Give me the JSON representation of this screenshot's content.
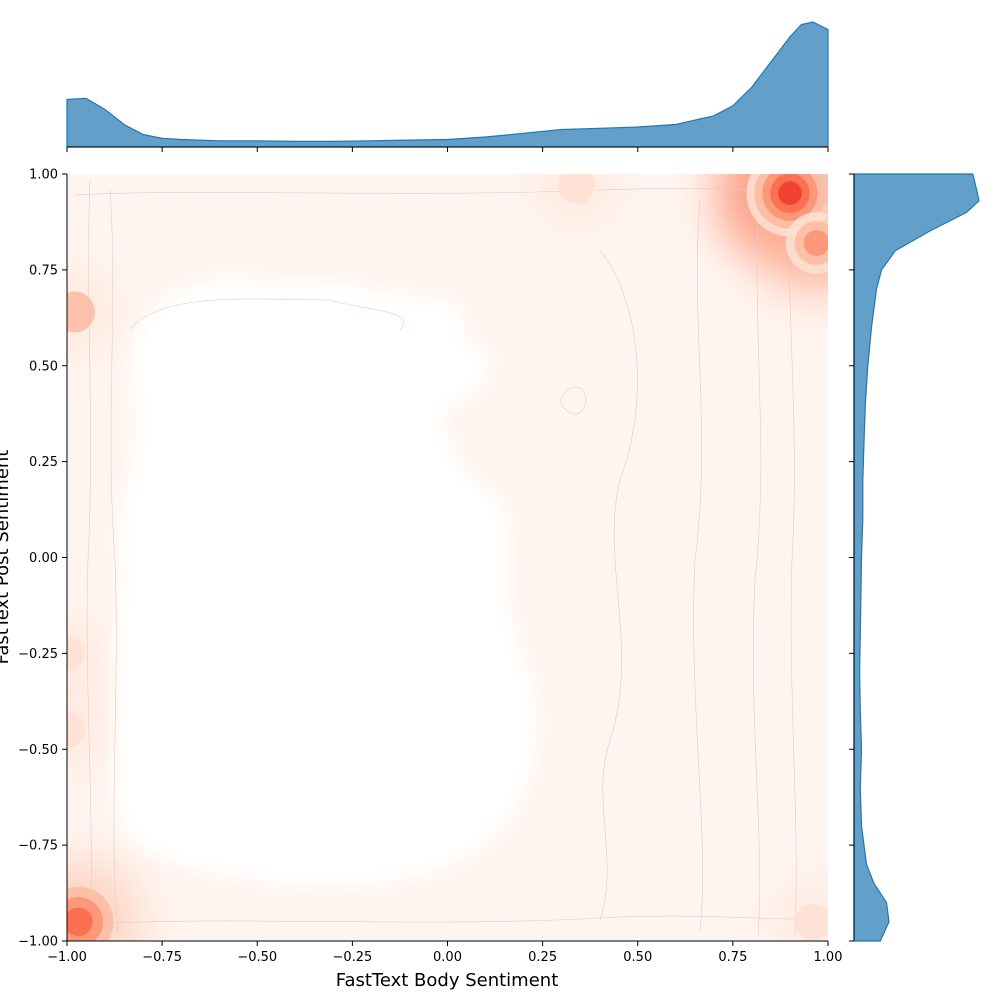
{
  "chart_data": {
    "type": "heatmap",
    "subtype": "jointplot-kde",
    "xlabel": "FastText Body Sentiment",
    "ylabel": "FastText Post Sentiment",
    "xlim": [
      -1.0,
      1.0
    ],
    "ylim": [
      -1.0,
      1.0
    ],
    "x_ticks": [
      "-1.00",
      "-0.75",
      "-0.50",
      "-0.25",
      "0.00",
      "0.25",
      "0.50",
      "0.75",
      "1.00"
    ],
    "y_ticks": [
      "-1.00",
      "-0.75",
      "-0.50",
      "-0.25",
      "0.00",
      "0.25",
      "0.50",
      "0.75",
      "1.00"
    ],
    "grid": false,
    "colormap": "Reds",
    "marginal_color": "#1f77b4",
    "density_peaks": [
      {
        "x": 0.96,
        "y": 0.96,
        "level": 1.0
      },
      {
        "x": 0.9,
        "y": 0.95,
        "level": 0.75
      },
      {
        "x": 0.97,
        "y": 0.82,
        "level": 0.45
      },
      {
        "x": -0.97,
        "y": -0.95,
        "level": 0.55
      },
      {
        "x": -0.98,
        "y": 0.64,
        "level": 0.2
      },
      {
        "x": 0.34,
        "y": 0.97,
        "level": 0.15
      },
      {
        "x": -1.0,
        "y": -0.45,
        "level": 0.15
      },
      {
        "x": -1.0,
        "y": -0.25,
        "level": 0.12
      },
      {
        "x": 0.96,
        "y": -0.95,
        "level": 0.15
      }
    ],
    "marginal_x": {
      "x": [
        -1.0,
        -0.95,
        -0.9,
        -0.85,
        -0.8,
        -0.75,
        -0.7,
        -0.6,
        -0.5,
        -0.4,
        -0.3,
        -0.2,
        -0.1,
        0.0,
        0.1,
        0.2,
        0.3,
        0.4,
        0.5,
        0.6,
        0.7,
        0.75,
        0.8,
        0.85,
        0.9,
        0.93,
        0.96,
        1.0
      ],
      "density": [
        0.38,
        0.39,
        0.3,
        0.18,
        0.1,
        0.07,
        0.06,
        0.05,
        0.05,
        0.045,
        0.045,
        0.05,
        0.055,
        0.06,
        0.08,
        0.11,
        0.14,
        0.15,
        0.16,
        0.18,
        0.25,
        0.33,
        0.48,
        0.68,
        0.88,
        0.98,
        1.0,
        0.94
      ]
    },
    "marginal_y": {
      "y": [
        -1.0,
        -0.95,
        -0.9,
        -0.85,
        -0.8,
        -0.7,
        -0.6,
        -0.5,
        -0.4,
        -0.3,
        -0.2,
        -0.1,
        0.0,
        0.1,
        0.2,
        0.3,
        0.4,
        0.5,
        0.6,
        0.7,
        0.75,
        0.8,
        0.85,
        0.9,
        0.93,
        0.96,
        1.0
      ],
      "density": [
        0.21,
        0.28,
        0.26,
        0.16,
        0.1,
        0.06,
        0.05,
        0.06,
        0.05,
        0.045,
        0.05,
        0.055,
        0.06,
        0.07,
        0.07,
        0.08,
        0.09,
        0.11,
        0.14,
        0.18,
        0.22,
        0.33,
        0.6,
        0.9,
        1.0,
        0.98,
        0.95
      ]
    }
  }
}
